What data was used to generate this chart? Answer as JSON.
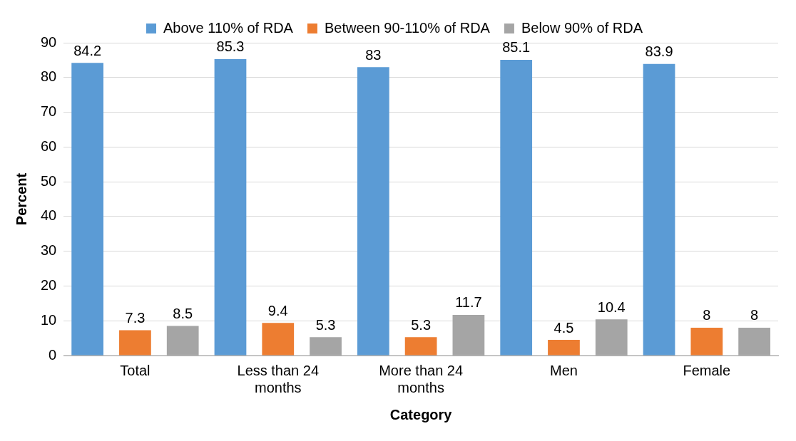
{
  "chart_data": {
    "type": "bar",
    "xlabel": "Category",
    "ylabel": "Percent",
    "categories": [
      "Total",
      "Less than 24 months",
      "More than 24 months",
      "Men",
      "Female"
    ],
    "series": [
      {
        "name": "Above 110% of RDA",
        "color": "#5b9bd5",
        "values": [
          84.2,
          85.3,
          83,
          85.1,
          83.9
        ]
      },
      {
        "name": "Between 90-110% of RDA",
        "color": "#ed7d31",
        "values": [
          7.3,
          9.4,
          5.3,
          4.5,
          8
        ]
      },
      {
        "name": "Below 90% of RDA",
        "color": "#a5a5a5",
        "values": [
          8.5,
          5.3,
          11.7,
          10.4,
          8
        ]
      }
    ],
    "ylim": [
      0,
      90
    ],
    "yticks": [
      0,
      10,
      20,
      30,
      40,
      50,
      60,
      70,
      80,
      90
    ],
    "grid": "y",
    "legend": "top",
    "data_labels": true
  }
}
